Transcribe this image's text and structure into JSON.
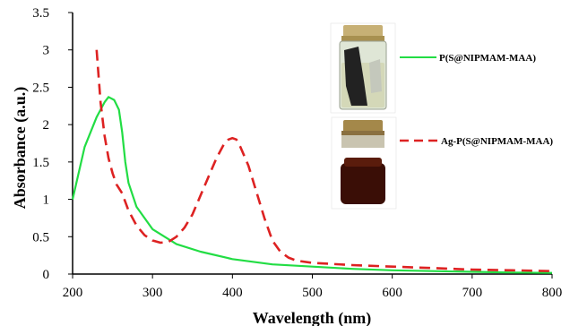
{
  "chart_data": {
    "type": "line",
    "xlabel": "Wavelength (nm)",
    "ylabel": "Absorbance (a.u.)",
    "xlim": [
      200,
      800
    ],
    "ylim": [
      0,
      3.5
    ],
    "x_ticks": [
      "200",
      "300",
      "400",
      "500",
      "600",
      "700",
      "800"
    ],
    "y_ticks": [
      "0",
      "0.5",
      "1",
      "1.5",
      "2",
      "2.5",
      "3",
      "3.5"
    ],
    "x_tick_values": [
      200,
      300,
      400,
      500,
      600,
      700,
      800
    ],
    "y_tick_values": [
      0,
      0.5,
      1,
      1.5,
      2,
      2.5,
      3,
      3.5
    ],
    "grid": false,
    "legend_position": "right, inside plot near top",
    "series": [
      {
        "name": "P(S@NIPMAM-MAA)",
        "color": "#22dd44",
        "line_style": "solid",
        "x": [
          200,
          215,
          230,
          240,
          245,
          252,
          258,
          262,
          266,
          270,
          280,
          300,
          330,
          360,
          400,
          450,
          500,
          550,
          600,
          650,
          700,
          750,
          800
        ],
        "y": [
          1.0,
          1.7,
          2.1,
          2.3,
          2.37,
          2.33,
          2.2,
          1.9,
          1.5,
          1.22,
          0.9,
          0.6,
          0.4,
          0.3,
          0.2,
          0.13,
          0.1,
          0.07,
          0.05,
          0.04,
          0.03,
          0.02,
          0.015
        ]
      },
      {
        "name": "Ag-P(S@NIPMAM-MAA)",
        "color": "#dd2222",
        "line_style": "dashed",
        "x": [
          230,
          235,
          240,
          245,
          250,
          255,
          262,
          270,
          280,
          290,
          300,
          310,
          320,
          330,
          340,
          350,
          360,
          370,
          380,
          390,
          395,
          400,
          405,
          410,
          420,
          430,
          440,
          450,
          460,
          470,
          480,
          500,
          550,
          600,
          650,
          700,
          750,
          800
        ],
        "y": [
          3.0,
          2.3,
          1.85,
          1.55,
          1.35,
          1.2,
          1.08,
          0.85,
          0.65,
          0.52,
          0.45,
          0.42,
          0.43,
          0.5,
          0.62,
          0.8,
          1.05,
          1.3,
          1.55,
          1.75,
          1.8,
          1.82,
          1.8,
          1.7,
          1.45,
          1.1,
          0.75,
          0.45,
          0.3,
          0.22,
          0.18,
          0.15,
          0.12,
          0.1,
          0.08,
          0.06,
          0.05,
          0.04
        ]
      }
    ]
  }
}
